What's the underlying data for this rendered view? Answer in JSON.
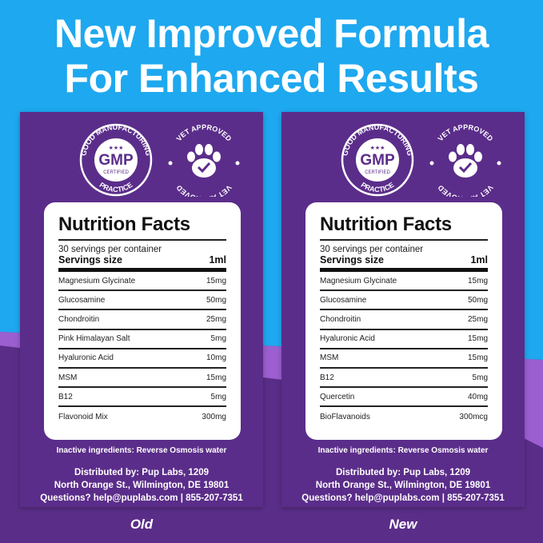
{
  "headline": {
    "line1": "New Improved Formula",
    "line2": "For Enhanced Results"
  },
  "colors": {
    "blue": "#1ea8ef",
    "purple_dark": "#5a2e88",
    "purple_light": "#9b5fd0",
    "card": "#5b2d8a"
  },
  "badges": {
    "gmp_top": "GOOD MANUFACTURING",
    "gmp_center": "GMP",
    "gmp_certified": "CERTIFIED",
    "gmp_bottom": "PRACTICE",
    "vet_top": "VET APPROVED",
    "vet_bottom": "VET APPROVED",
    "vet_icon": "paw-check-icon"
  },
  "cards": [
    {
      "caption": "Old",
      "title": "Nutrition Facts",
      "servings": "30 servings per container",
      "size_label": "Servings size",
      "size_value": "1ml",
      "rows": [
        [
          "Magnesium Glycinate",
          "15mg"
        ],
        [
          "Glucosamine",
          "50mg"
        ],
        [
          "Chondroitin",
          "25mg"
        ],
        [
          "Pink Himalayan Salt",
          "5mg"
        ],
        [
          "Hyaluronic Acid",
          "10mg"
        ],
        [
          "MSM",
          "15mg"
        ],
        [
          "B12",
          "5mg"
        ],
        [
          "Flavonoid Mix",
          "300mg"
        ]
      ],
      "inactive": "Inactive ingredients: Reverse Osmosis water",
      "dist1": "Distributed by: Pup Labs, 1209",
      "dist2": "North Orange St., Wilmington, DE 19801",
      "dist3": "Questions? help@puplabs.com | 855-207-7351"
    },
    {
      "caption": "New",
      "title": "Nutrition Facts",
      "servings": "30 servings per container",
      "size_label": "Servings size",
      "size_value": "1ml",
      "rows": [
        [
          "Magnesium Glycinate",
          "15mg"
        ],
        [
          "Glucosamine",
          "50mg"
        ],
        [
          "Chondroitin",
          "25mg"
        ],
        [
          "Hyaluronic Acid",
          "15mg"
        ],
        [
          "MSM",
          "15mg"
        ],
        [
          "B12",
          "5mg"
        ],
        [
          "Quercetin",
          "40mg"
        ],
        [
          "BioFlavanoids",
          "300mcg"
        ]
      ],
      "inactive": "Inactive ingredients: Reverse Osmosis water",
      "dist1": "Distributed by: Pup Labs, 1209",
      "dist2": "North Orange St., Wilmington, DE 19801",
      "dist3": "Questions? help@puplabs.com | 855-207-7351"
    }
  ]
}
